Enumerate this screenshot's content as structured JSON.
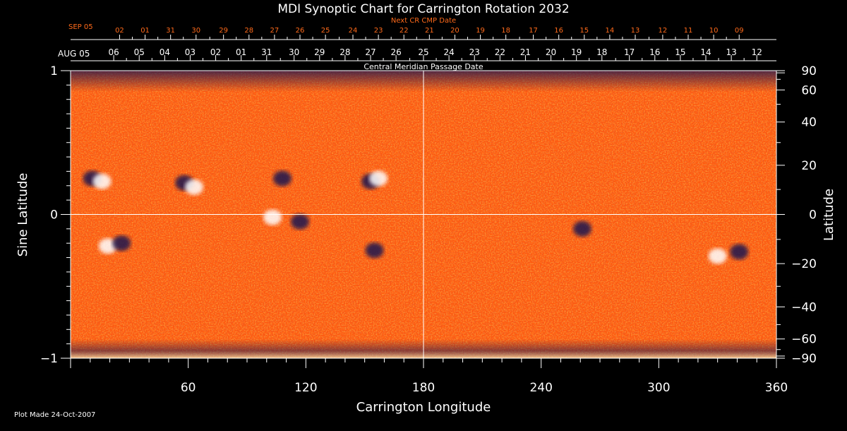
{
  "chart_data": {
    "type": "heatmap",
    "title": "MDI Synoptic Chart for Carrington Rotation 2032",
    "xlabel": "Carrington Longitude",
    "ylabel_left": "Sine Latitude",
    "ylabel_right": "Latitude",
    "top_axis_title": "Central Meridian Passage Date",
    "next_cr_title": "Next CR CMP Date",
    "footer": "Plot Made 24-Oct-2007",
    "xlim": [
      0,
      360
    ],
    "ylim": [
      -1,
      1
    ],
    "x_ticks": [
      {
        "value": 60,
        "label": "60"
      },
      {
        "value": 120,
        "label": "120"
      },
      {
        "value": 180,
        "label": "180"
      },
      {
        "value": 240,
        "label": "240"
      },
      {
        "value": 300,
        "label": "300"
      },
      {
        "value": 360,
        "label": "360"
      }
    ],
    "y_left_ticks": [
      {
        "value": 1,
        "label": "1"
      },
      {
        "value": 0,
        "label": "0"
      },
      {
        "value": -1,
        "label": "−1"
      }
    ],
    "y_right_ticks": [
      {
        "value": 90,
        "label": "90"
      },
      {
        "value": 60,
        "label": "60"
      },
      {
        "value": 40,
        "label": "40"
      },
      {
        "value": 20,
        "label": "20"
      },
      {
        "value": 0,
        "label": "0"
      },
      {
        "value": -20,
        "label": "−20"
      },
      {
        "value": -40,
        "label": "−40"
      },
      {
        "value": -60,
        "label": "−60"
      },
      {
        "value": -90,
        "label": "−90"
      }
    ],
    "cmp_month_label": "AUG 05",
    "cmp_dates": [
      {
        "lon": 22,
        "label": "06"
      },
      {
        "lon": 35,
        "label": "05"
      },
      {
        "lon": 48,
        "label": "04"
      },
      {
        "lon": 61,
        "label": "03"
      },
      {
        "lon": 74,
        "label": "02"
      },
      {
        "lon": 87,
        "label": "01"
      },
      {
        "lon": 100,
        "label": "31"
      },
      {
        "lon": 114,
        "label": "30"
      },
      {
        "lon": 127,
        "label": "29"
      },
      {
        "lon": 140,
        "label": "28"
      },
      {
        "lon": 153,
        "label": "27"
      },
      {
        "lon": 166,
        "label": "26"
      },
      {
        "lon": 180,
        "label": "25"
      },
      {
        "lon": 193,
        "label": "24"
      },
      {
        "lon": 206,
        "label": "23"
      },
      {
        "lon": 219,
        "label": "22"
      },
      {
        "lon": 232,
        "label": "21"
      },
      {
        "lon": 245,
        "label": "20"
      },
      {
        "lon": 258,
        "label": "19"
      },
      {
        "lon": 271,
        "label": "18"
      },
      {
        "lon": 285,
        "label": "17"
      },
      {
        "lon": 298,
        "label": "16"
      },
      {
        "lon": 311,
        "label": "15"
      },
      {
        "lon": 324,
        "label": "14"
      },
      {
        "lon": 337,
        "label": "13"
      },
      {
        "lon": 350,
        "label": "12"
      }
    ],
    "next_month_label": "SEP 05",
    "next_dates": [
      {
        "lon": 25,
        "label": "02"
      },
      {
        "lon": 38,
        "label": "01"
      },
      {
        "lon": 51,
        "label": "31"
      },
      {
        "lon": 64,
        "label": "30"
      },
      {
        "lon": 78,
        "label": "29"
      },
      {
        "lon": 91,
        "label": "28"
      },
      {
        "lon": 104,
        "label": "27"
      },
      {
        "lon": 117,
        "label": "26"
      },
      {
        "lon": 130,
        "label": "25"
      },
      {
        "lon": 144,
        "label": "24"
      },
      {
        "lon": 157,
        "label": "23"
      },
      {
        "lon": 170,
        "label": "22"
      },
      {
        "lon": 183,
        "label": "21"
      },
      {
        "lon": 196,
        "label": "20"
      },
      {
        "lon": 209,
        "label": "19"
      },
      {
        "lon": 222,
        "label": "18"
      },
      {
        "lon": 236,
        "label": "17"
      },
      {
        "lon": 249,
        "label": "16"
      },
      {
        "lon": 262,
        "label": "15"
      },
      {
        "lon": 275,
        "label": "14"
      },
      {
        "lon": 288,
        "label": "13"
      },
      {
        "lon": 302,
        "label": "12"
      },
      {
        "lon": 315,
        "label": "11"
      },
      {
        "lon": 328,
        "label": "10"
      },
      {
        "lon": 341,
        "label": "09"
      }
    ],
    "active_regions": [
      {
        "lon": 11,
        "sinlat": 0.25,
        "polarity": "negative"
      },
      {
        "lon": 16,
        "sinlat": 0.23,
        "polarity": "positive"
      },
      {
        "lon": 58,
        "sinlat": 0.22,
        "polarity": "negative"
      },
      {
        "lon": 63,
        "sinlat": 0.19,
        "polarity": "positive"
      },
      {
        "lon": 108,
        "sinlat": 0.25,
        "polarity": "negative"
      },
      {
        "lon": 153,
        "sinlat": 0.23,
        "polarity": "negative"
      },
      {
        "lon": 157,
        "sinlat": 0.25,
        "polarity": "positive"
      },
      {
        "lon": 19,
        "sinlat": -0.22,
        "polarity": "positive"
      },
      {
        "lon": 26,
        "sinlat": -0.2,
        "polarity": "negative"
      },
      {
        "lon": 103,
        "sinlat": -0.02,
        "polarity": "positive"
      },
      {
        "lon": 117,
        "sinlat": -0.05,
        "polarity": "negative"
      },
      {
        "lon": 155,
        "sinlat": -0.25,
        "polarity": "negative"
      },
      {
        "lon": 261,
        "sinlat": -0.1,
        "polarity": "negative"
      },
      {
        "lon": 330,
        "sinlat": -0.29,
        "polarity": "positive"
      },
      {
        "lon": 341,
        "sinlat": -0.26,
        "polarity": "negative"
      }
    ],
    "colors": {
      "background": "#ff5a0f",
      "positive": "#ffffff",
      "negative": "#1a1450",
      "axis": "#ffffff",
      "date_orange": "#ff6a1a"
    }
  }
}
